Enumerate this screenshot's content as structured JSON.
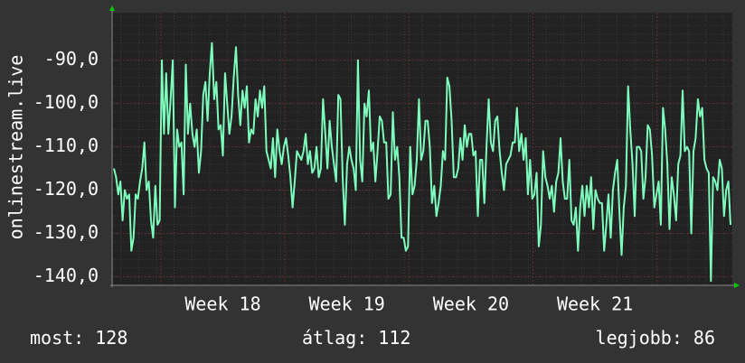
{
  "chart_data": {
    "type": "line",
    "ylabel": "onlinestream.live",
    "ylim": [
      -142,
      -79
    ],
    "yticks": [
      -90,
      -100,
      -110,
      -120,
      -130,
      -140
    ],
    "ytick_labels": [
      "-90,0",
      "-100,0",
      "-110,0",
      "-120,0",
      "-130,0",
      "-140,0"
    ],
    "xlim": [
      0,
      280
    ],
    "xticks": [
      {
        "label": "Week 18",
        "value": 50
      },
      {
        "label": "Week 19",
        "value": 106
      },
      {
        "label": "Week 20",
        "value": 162
      },
      {
        "label": "Week 21",
        "value": 218
      }
    ],
    "grid": true,
    "colors": {
      "background": "#333333",
      "plot_background": "#222222",
      "line": "#7dfcbd",
      "grid": "#5a2f2f",
      "arrow": "#00cc00",
      "text": "#ffffff"
    },
    "series": [
      {
        "values": [
          -115,
          -117,
          -121,
          -118,
          -127,
          -120,
          -122,
          -121,
          -134,
          -131,
          -121,
          -122,
          -118,
          -115,
          -109,
          -120,
          -118,
          -127,
          -131,
          -119,
          -128,
          -127,
          -90,
          -107,
          -93,
          -107,
          -99,
          -90,
          -124,
          -106,
          -110,
          -109,
          -121,
          -91,
          -107,
          -100,
          -107,
          -110,
          -106,
          -116,
          -111,
          -98,
          -95,
          -104,
          -93,
          -86,
          -99,
          -95,
          -106,
          -105,
          -112,
          -93,
          -100,
          -107,
          -103,
          -94,
          -87,
          -98,
          -105,
          -97,
          -101,
          -96,
          -109,
          -106,
          -107,
          -99,
          -103,
          -97,
          -101,
          -96,
          -111,
          -113,
          -115,
          -108,
          -117,
          -106,
          -111,
          -114,
          -110,
          -108,
          -112,
          -117,
          -124,
          -118,
          -111,
          -112,
          -113,
          -111,
          -107,
          -114,
          -111,
          -116,
          -115,
          -110,
          -117,
          -115,
          -99,
          -107,
          -115,
          -104,
          -110,
          -114,
          -118,
          -98,
          -99,
          -117,
          -128,
          -114,
          -110,
          -113,
          -115,
          -120,
          -90,
          -113,
          -118,
          -100,
          -103,
          -97,
          -111,
          -109,
          -118,
          -111,
          -103,
          -104,
          -109,
          -109,
          -122,
          -121,
          -102,
          -113,
          -110,
          -117,
          -131,
          -131,
          -134,
          -133,
          -110,
          -121,
          -119,
          -113,
          -99,
          -113,
          -111,
          -104,
          -104,
          -110,
          -123,
          -119,
          -126,
          -123,
          -119,
          -111,
          -113,
          -94,
          -96,
          -104,
          -117,
          -117,
          -115,
          -108,
          -113,
          -105,
          -110,
          -107,
          -107,
          -112,
          -111,
          -126,
          -113,
          -113,
          -123,
          -110,
          -99,
          -109,
          -111,
          -104,
          -103,
          -111,
          -116,
          -120,
          -114,
          -113,
          -112,
          -109,
          -109,
          -101,
          -111,
          -107,
          -113,
          -108,
          -121,
          -113,
          -122,
          -121,
          -116,
          -133,
          -128,
          -111,
          -117,
          -119,
          -122,
          -119,
          -125,
          -118,
          -116,
          -108,
          -118,
          -122,
          -122,
          -113,
          -127,
          -128,
          -124,
          -134,
          -124,
          -119,
          -126,
          -119,
          -124,
          -117,
          -129,
          -120,
          -122,
          -123,
          -123,
          -134,
          -128,
          -121,
          -131,
          -120,
          -116,
          -113,
          -125,
          -135,
          -124,
          -119,
          -96,
          -106,
          -114,
          -126,
          -110,
          -110,
          -111,
          -122,
          -117,
          -105,
          -106,
          -112,
          -124,
          -121,
          -118,
          -128,
          -101,
          -106,
          -114,
          -129,
          -117,
          -121,
          -127,
          -114,
          -112,
          -97,
          -111,
          -110,
          -111,
          -130,
          -111,
          -108,
          -99,
          -103,
          -101,
          -113,
          -115,
          -116,
          -141,
          -117,
          -118,
          -120,
          -113,
          -115,
          -126,
          -120,
          -118,
          -128
        ]
      }
    ]
  },
  "stats": {
    "now": "most: 128",
    "avg": "átlag: 112",
    "max": "legjobb: 86"
  }
}
